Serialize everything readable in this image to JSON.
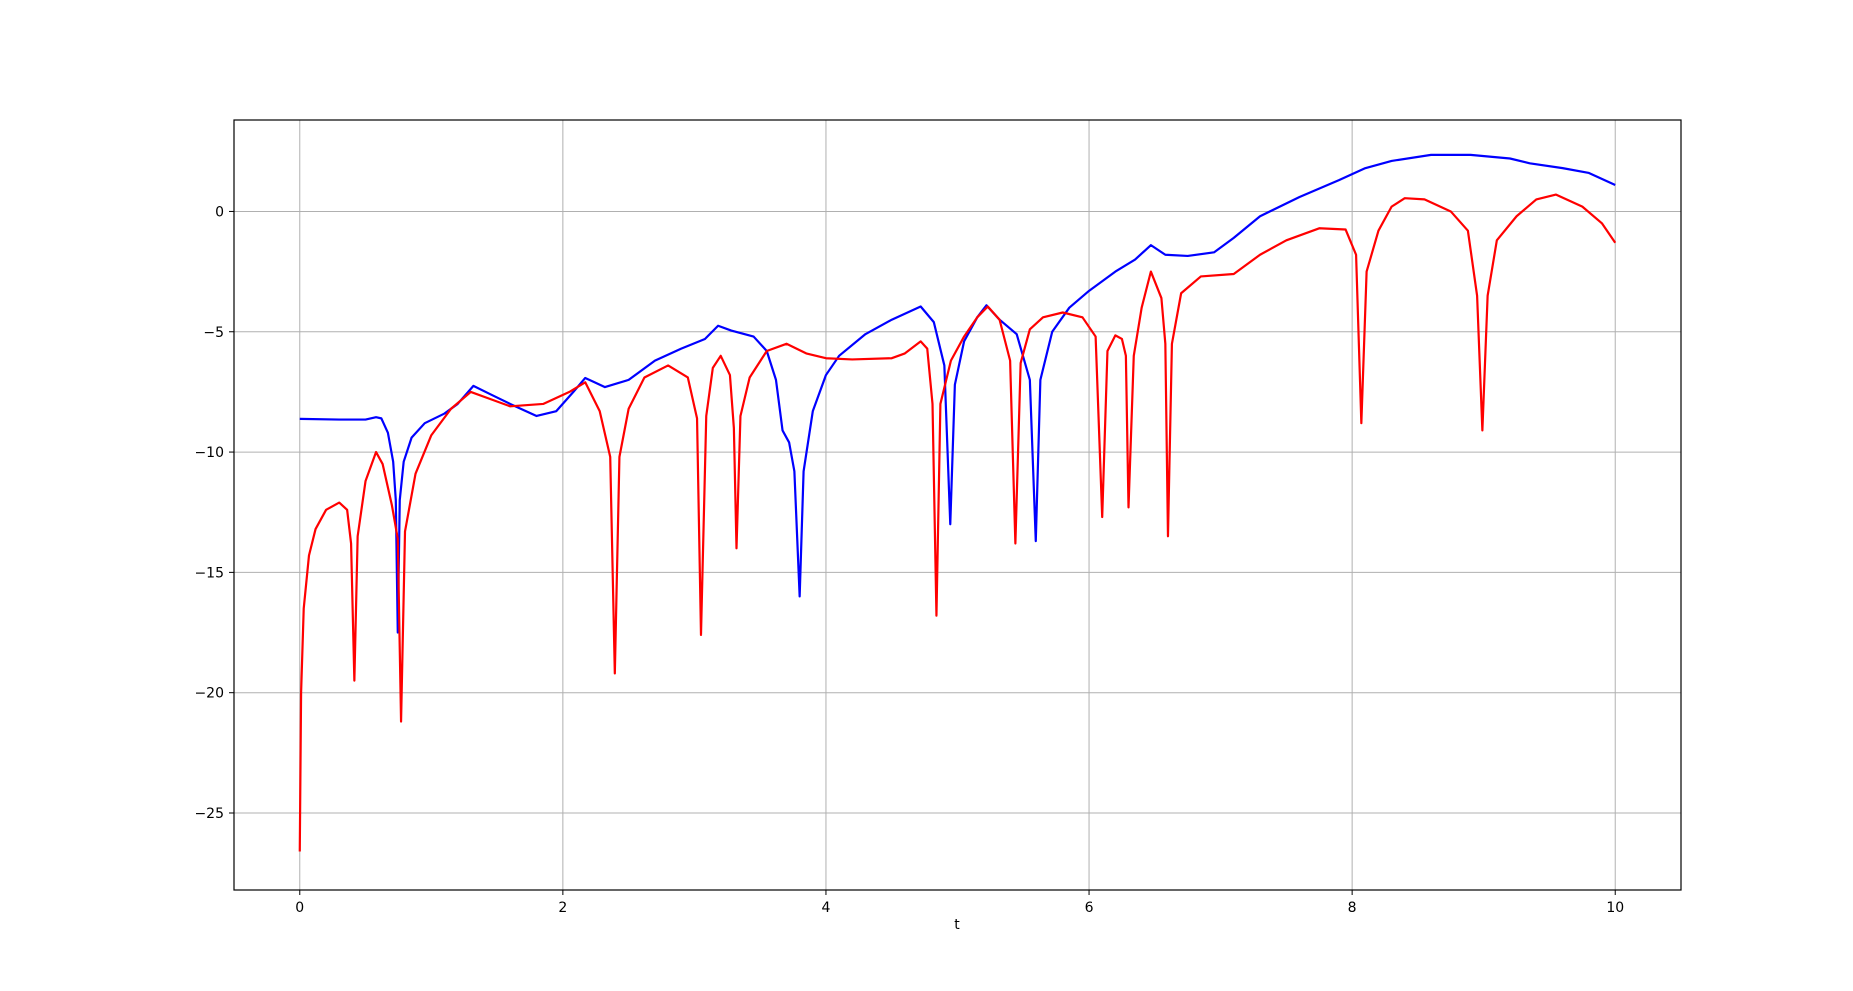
{
  "chart_data": {
    "type": "line",
    "title": "",
    "xlabel": "t",
    "ylabel": "",
    "xlim": [
      -0.5,
      10.5
    ],
    "ylim": [
      -28.2,
      3.8
    ],
    "grid": true,
    "legend": "none",
    "x_ticks": [
      0,
      2,
      4,
      6,
      8,
      10
    ],
    "x_tick_labels": [
      "0",
      "2",
      "4",
      "6",
      "8",
      "10"
    ],
    "y_ticks": [
      0,
      -5,
      -10,
      -15,
      -20,
      -25
    ],
    "y_tick_labels": [
      "0",
      "−5",
      "−10",
      "−15",
      "−20",
      "−25"
    ],
    "series": [
      {
        "color": "#0000ff",
        "points": [
          [
            0,
            -8.62
          ],
          [
            0.3,
            -8.65
          ],
          [
            0.5,
            -8.65
          ],
          [
            0.58,
            -8.55
          ],
          [
            0.62,
            -8.6
          ],
          [
            0.67,
            -9.2
          ],
          [
            0.71,
            -10.4
          ],
          [
            0.73,
            -12.0
          ],
          [
            0.745,
            -17.5
          ],
          [
            0.76,
            -12.0
          ],
          [
            0.79,
            -10.4
          ],
          [
            0.85,
            -9.4
          ],
          [
            0.95,
            -8.8
          ],
          [
            1.1,
            -8.4
          ],
          [
            1.2,
            -8.0
          ],
          [
            1.32,
            -7.25
          ],
          [
            1.45,
            -7.6
          ],
          [
            1.6,
            -8.0
          ],
          [
            1.8,
            -8.5
          ],
          [
            1.95,
            -8.3
          ],
          [
            2.08,
            -7.5
          ],
          [
            2.17,
            -6.92
          ],
          [
            2.32,
            -7.3
          ],
          [
            2.5,
            -7.0
          ],
          [
            2.7,
            -6.2
          ],
          [
            2.9,
            -5.7
          ],
          [
            3.08,
            -5.3
          ],
          [
            3.18,
            -4.75
          ],
          [
            3.28,
            -4.95
          ],
          [
            3.45,
            -5.2
          ],
          [
            3.55,
            -5.8
          ],
          [
            3.62,
            -7.0
          ],
          [
            3.67,
            -9.1
          ],
          [
            3.72,
            -9.6
          ],
          [
            3.76,
            -10.8
          ],
          [
            3.8,
            -16.0
          ],
          [
            3.83,
            -10.8
          ],
          [
            3.9,
            -8.3
          ],
          [
            4.0,
            -6.8
          ],
          [
            4.1,
            -6.0
          ],
          [
            4.3,
            -5.1
          ],
          [
            4.5,
            -4.5
          ],
          [
            4.72,
            -3.95
          ],
          [
            4.82,
            -4.6
          ],
          [
            4.9,
            -6.4
          ],
          [
            4.945,
            -13.0
          ],
          [
            4.98,
            -7.2
          ],
          [
            5.05,
            -5.4
          ],
          [
            5.15,
            -4.4
          ],
          [
            5.22,
            -3.9
          ],
          [
            5.32,
            -4.5
          ],
          [
            5.45,
            -5.1
          ],
          [
            5.55,
            -7.0
          ],
          [
            5.595,
            -13.7
          ],
          [
            5.63,
            -7.0
          ],
          [
            5.72,
            -5.0
          ],
          [
            5.85,
            -4.0
          ],
          [
            6.0,
            -3.3
          ],
          [
            6.2,
            -2.5
          ],
          [
            6.35,
            -2.0
          ],
          [
            6.47,
            -1.4
          ],
          [
            6.58,
            -1.8
          ],
          [
            6.75,
            -1.85
          ],
          [
            6.95,
            -1.7
          ],
          [
            7.1,
            -1.1
          ],
          [
            7.3,
            -0.2
          ],
          [
            7.6,
            0.6
          ],
          [
            7.9,
            1.3
          ],
          [
            8.1,
            1.8
          ],
          [
            8.3,
            2.1
          ],
          [
            8.6,
            2.35
          ],
          [
            8.9,
            2.35
          ],
          [
            9.2,
            2.2
          ],
          [
            9.35,
            2.0
          ],
          [
            9.6,
            1.8
          ],
          [
            9.8,
            1.6
          ],
          [
            10.0,
            1.1
          ]
        ]
      },
      {
        "color": "#ff0000",
        "points": [
          [
            0,
            -26.6
          ],
          [
            0.01,
            -20.0
          ],
          [
            0.03,
            -16.5
          ],
          [
            0.07,
            -14.3
          ],
          [
            0.12,
            -13.2
          ],
          [
            0.2,
            -12.4
          ],
          [
            0.3,
            -12.1
          ],
          [
            0.36,
            -12.4
          ],
          [
            0.39,
            -13.8
          ],
          [
            0.415,
            -19.5
          ],
          [
            0.44,
            -13.5
          ],
          [
            0.5,
            -11.2
          ],
          [
            0.58,
            -10.0
          ],
          [
            0.63,
            -10.5
          ],
          [
            0.7,
            -12.2
          ],
          [
            0.745,
            -13.6
          ],
          [
            0.77,
            -21.2
          ],
          [
            0.8,
            -13.3
          ],
          [
            0.88,
            -10.9
          ],
          [
            1.0,
            -9.3
          ],
          [
            1.15,
            -8.2
          ],
          [
            1.3,
            -7.5
          ],
          [
            1.45,
            -7.8
          ],
          [
            1.6,
            -8.1
          ],
          [
            1.85,
            -8.0
          ],
          [
            2.05,
            -7.5
          ],
          [
            2.17,
            -7.1
          ],
          [
            2.28,
            -8.3
          ],
          [
            2.36,
            -10.2
          ],
          [
            2.395,
            -19.2
          ],
          [
            2.43,
            -10.2
          ],
          [
            2.5,
            -8.2
          ],
          [
            2.62,
            -6.9
          ],
          [
            2.8,
            -6.4
          ],
          [
            2.95,
            -6.9
          ],
          [
            3.02,
            -8.6
          ],
          [
            3.05,
            -17.6
          ],
          [
            3.09,
            -8.5
          ],
          [
            3.14,
            -6.5
          ],
          [
            3.2,
            -6.0
          ],
          [
            3.27,
            -6.8
          ],
          [
            3.3,
            -9.0
          ],
          [
            3.32,
            -14.0
          ],
          [
            3.35,
            -8.5
          ],
          [
            3.42,
            -6.9
          ],
          [
            3.55,
            -5.8
          ],
          [
            3.7,
            -5.5
          ],
          [
            3.85,
            -5.9
          ],
          [
            4.0,
            -6.1
          ],
          [
            4.2,
            -6.15
          ],
          [
            4.5,
            -6.1
          ],
          [
            4.6,
            -5.9
          ],
          [
            4.72,
            -5.4
          ],
          [
            4.77,
            -5.7
          ],
          [
            4.81,
            -8.0
          ],
          [
            4.84,
            -16.8
          ],
          [
            4.87,
            -8.0
          ],
          [
            4.95,
            -6.2
          ],
          [
            5.05,
            -5.2
          ],
          [
            5.15,
            -4.4
          ],
          [
            5.23,
            -3.95
          ],
          [
            5.32,
            -4.5
          ],
          [
            5.4,
            -6.2
          ],
          [
            5.44,
            -13.8
          ],
          [
            5.48,
            -6.3
          ],
          [
            5.55,
            -4.9
          ],
          [
            5.65,
            -4.4
          ],
          [
            5.8,
            -4.2
          ],
          [
            5.95,
            -4.4
          ],
          [
            6.05,
            -5.2
          ],
          [
            6.1,
            -12.7
          ],
          [
            6.14,
            -5.8
          ],
          [
            6.2,
            -5.15
          ],
          [
            6.25,
            -5.3
          ],
          [
            6.28,
            -6.0
          ],
          [
            6.3,
            -12.3
          ],
          [
            6.34,
            -6.0
          ],
          [
            6.4,
            -4.0
          ],
          [
            6.47,
            -2.5
          ],
          [
            6.55,
            -3.6
          ],
          [
            6.58,
            -5.5
          ],
          [
            6.6,
            -13.5
          ],
          [
            6.63,
            -5.5
          ],
          [
            6.7,
            -3.4
          ],
          [
            6.85,
            -2.7
          ],
          [
            7.1,
            -2.6
          ],
          [
            7.3,
            -1.8
          ],
          [
            7.5,
            -1.2
          ],
          [
            7.75,
            -0.7
          ],
          [
            7.95,
            -0.75
          ],
          [
            8.03,
            -1.8
          ],
          [
            8.07,
            -8.8
          ],
          [
            8.11,
            -2.5
          ],
          [
            8.2,
            -0.8
          ],
          [
            8.3,
            0.2
          ],
          [
            8.4,
            0.55
          ],
          [
            8.55,
            0.5
          ],
          [
            8.75,
            0.0
          ],
          [
            8.88,
            -0.8
          ],
          [
            8.95,
            -3.5
          ],
          [
            8.99,
            -9.1
          ],
          [
            9.03,
            -3.5
          ],
          [
            9.1,
            -1.2
          ],
          [
            9.25,
            -0.2
          ],
          [
            9.4,
            0.5
          ],
          [
            9.55,
            0.7
          ],
          [
            9.75,
            0.2
          ],
          [
            9.9,
            -0.5
          ],
          [
            10.0,
            -1.3
          ]
        ]
      }
    ]
  }
}
